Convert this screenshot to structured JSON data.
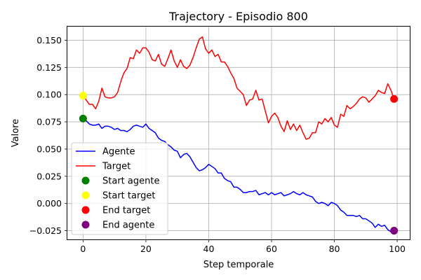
{
  "chart_data": {
    "type": "line",
    "title": "Trajectory - Episodio 800",
    "xlabel": "Step temporale",
    "ylabel": "Valore",
    "xlim": [
      -5,
      104
    ],
    "ylim": [
      -0.033,
      0.1625
    ],
    "xticks": [
      0,
      20,
      40,
      60,
      80,
      100
    ],
    "xtick_labels": [
      "0",
      "20",
      "40",
      "60",
      "80",
      "100"
    ],
    "yticks": [
      -0.025,
      0.0,
      0.025,
      0.05,
      0.075,
      0.1,
      0.125,
      0.15
    ],
    "ytick_labels": [
      "−0.025",
      "0.000",
      "0.025",
      "0.050",
      "0.075",
      "0.100",
      "0.125",
      "0.150"
    ],
    "grid": true,
    "legend_position": "center-left",
    "series": [
      {
        "name": "Agente",
        "color": "#0000ff",
        "x": [
          0,
          1,
          2,
          3,
          4,
          5,
          6,
          7,
          8,
          9,
          10,
          11,
          12,
          13,
          14,
          15,
          16,
          17,
          18,
          19,
          20,
          21,
          22,
          23,
          24,
          25,
          26,
          27,
          28,
          29,
          30,
          31,
          32,
          33,
          34,
          35,
          36,
          37,
          38,
          39,
          40,
          41,
          42,
          43,
          44,
          45,
          46,
          47,
          48,
          49,
          50,
          51,
          52,
          53,
          54,
          55,
          56,
          57,
          58,
          59,
          60,
          61,
          62,
          63,
          64,
          65,
          66,
          67,
          68,
          69,
          70,
          71,
          72,
          73,
          74,
          75,
          76,
          77,
          78,
          79,
          80,
          81,
          82,
          83,
          84,
          85,
          86,
          87,
          88,
          89,
          90,
          91,
          92,
          93,
          94,
          95,
          96,
          97,
          98,
          99
        ],
        "values": [
          0.078,
          0.076,
          0.073,
          0.072,
          0.072,
          0.073,
          0.069,
          0.071,
          0.071,
          0.07,
          0.068,
          0.069,
          0.067,
          0.067,
          0.066,
          0.068,
          0.071,
          0.072,
          0.071,
          0.07,
          0.073,
          0.069,
          0.067,
          0.065,
          0.06,
          0.058,
          0.057,
          0.054,
          0.052,
          0.049,
          0.048,
          0.042,
          0.045,
          0.046,
          0.043,
          0.038,
          0.033,
          0.03,
          0.031,
          0.033,
          0.036,
          0.034,
          0.032,
          0.028,
          0.028,
          0.023,
          0.021,
          0.02,
          0.015,
          0.015,
          0.013,
          0.01,
          0.01,
          0.011,
          0.011,
          0.012,
          0.008,
          0.009,
          0.01,
          0.008,
          0.01,
          0.008,
          0.009,
          0.01,
          0.007,
          0.008,
          0.009,
          0.011,
          0.009,
          0.008,
          0.01,
          0.008,
          0.007,
          0.006,
          0.002,
          0.0,
          0.001,
          0.0,
          -0.002,
          0.001,
          0.0,
          -0.002,
          -0.006,
          -0.008,
          -0.011,
          -0.011,
          -0.011,
          -0.012,
          -0.011,
          -0.014,
          -0.014,
          -0.016,
          -0.018,
          -0.022,
          -0.019,
          -0.021,
          -0.02,
          -0.024,
          -0.026,
          -0.025
        ]
      },
      {
        "name": "Target",
        "color": "#ff0000",
        "x": [
          0,
          1,
          2,
          3,
          4,
          5,
          6,
          7,
          8,
          9,
          10,
          11,
          12,
          13,
          14,
          15,
          16,
          17,
          18,
          19,
          20,
          21,
          22,
          23,
          24,
          25,
          26,
          27,
          28,
          29,
          30,
          31,
          32,
          33,
          34,
          35,
          36,
          37,
          38,
          39,
          40,
          41,
          42,
          43,
          44,
          45,
          46,
          47,
          48,
          49,
          50,
          51,
          52,
          53,
          54,
          55,
          56,
          57,
          58,
          59,
          60,
          61,
          62,
          63,
          64,
          65,
          66,
          67,
          68,
          69,
          70,
          71,
          72,
          73,
          74,
          75,
          76,
          77,
          78,
          79,
          80,
          81,
          82,
          83,
          84,
          85,
          86,
          87,
          88,
          89,
          90,
          91,
          92,
          93,
          94,
          95,
          96,
          97,
          98,
          99,
          100
        ],
        "values": [
          0.099,
          0.095,
          0.091,
          0.091,
          0.087,
          0.094,
          0.106,
          0.098,
          0.097,
          0.097,
          0.098,
          0.102,
          0.112,
          0.12,
          0.124,
          0.134,
          0.133,
          0.141,
          0.138,
          0.143,
          0.143,
          0.139,
          0.132,
          0.131,
          0.137,
          0.128,
          0.126,
          0.133,
          0.141,
          0.131,
          0.125,
          0.132,
          0.126,
          0.124,
          0.127,
          0.134,
          0.143,
          0.151,
          0.153,
          0.142,
          0.138,
          0.141,
          0.135,
          0.137,
          0.13,
          0.13,
          0.126,
          0.12,
          0.115,
          0.106,
          0.103,
          0.1,
          0.09,
          0.095,
          0.096,
          0.104,
          0.095,
          0.096,
          0.085,
          0.074,
          0.08,
          0.083,
          0.079,
          0.071,
          0.066,
          0.076,
          0.068,
          0.073,
          0.067,
          0.072,
          0.065,
          0.059,
          0.06,
          0.065,
          0.065,
          0.075,
          0.073,
          0.078,
          0.075,
          0.079,
          0.072,
          0.07,
          0.082,
          0.08,
          0.09,
          0.087,
          0.089,
          0.092,
          0.096,
          0.098,
          0.097,
          0.093,
          0.096,
          0.099,
          0.104,
          0.102,
          0.101,
          0.11,
          0.104,
          0.096,
          0.096
        ]
      }
    ],
    "markers": [
      {
        "name": "Start agente",
        "color": "#008000",
        "x": 0,
        "y": 0.078
      },
      {
        "name": "Start target",
        "color": "#ffff00",
        "x": 0,
        "y": 0.099
      },
      {
        "name": "End target",
        "color": "#ff0000",
        "x": 99,
        "y": 0.096
      },
      {
        "name": "End agente",
        "color": "#800080",
        "x": 99,
        "y": -0.025
      }
    ]
  }
}
